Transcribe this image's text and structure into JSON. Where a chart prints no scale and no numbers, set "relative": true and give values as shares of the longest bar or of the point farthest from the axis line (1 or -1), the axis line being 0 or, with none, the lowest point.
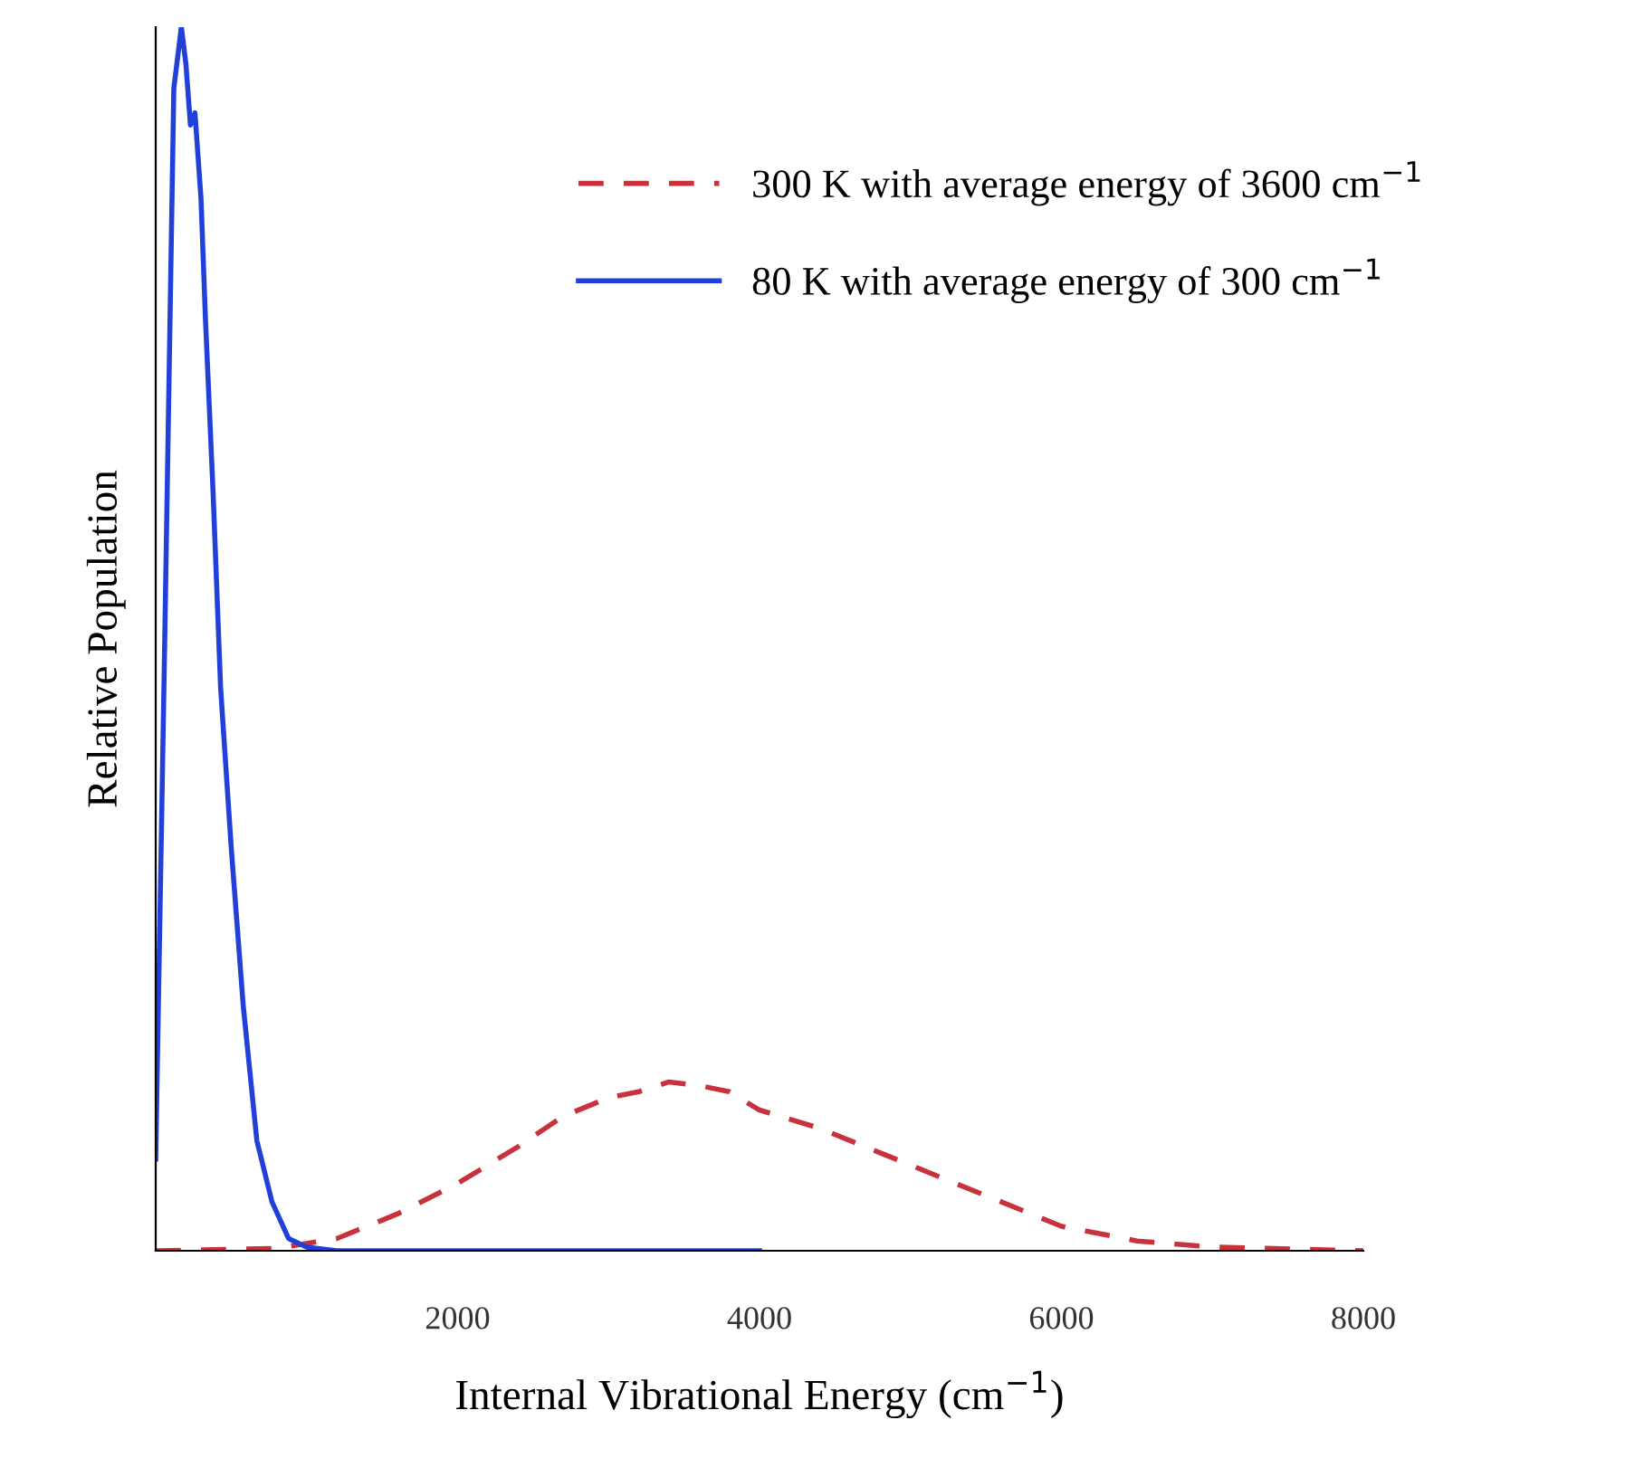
{
  "chart_data": {
    "type": "line",
    "relative": true,
    "xlabel": "Internal Vibrational Energy (cm$^{−1}$)",
    "ylabel": "Relative Population",
    "xlim": [
      0,
      8000
    ],
    "xticks": [
      2000,
      4000,
      6000,
      8000
    ],
    "legend": "top right",
    "grid": false,
    "series": [
      {
        "name": "300 K with average energy of 3600 cm$^{−1}$",
        "color": "#c8323c",
        "line_style": "dashed",
        "x": [
          0,
          800,
          1200,
          1600,
          2000,
          2400,
          2700,
          3000,
          3200,
          3400,
          3600,
          3800,
          4000,
          4400,
          4800,
          5200,
          5600,
          6000,
          6500,
          7000,
          8000
        ],
        "values": [
          0,
          0.002,
          0.01,
          0.03,
          0.055,
          0.085,
          0.11,
          0.125,
          0.13,
          0.138,
          0.135,
          0.13,
          0.115,
          0.1,
          0.08,
          0.06,
          0.04,
          0.02,
          0.008,
          0.003,
          0
        ]
      },
      {
        "name": "80 K with average energy of 300 cm$^{−1}$",
        "color": "#2040d8",
        "line_style": "solid",
        "x": [
          0,
          60,
          120,
          170,
          200,
          230,
          260,
          300,
          330,
          380,
          430,
          500,
          580,
          670,
          770,
          880,
          1000,
          1200,
          2000,
          4000
        ],
        "values": [
          0.075,
          0.5,
          0.95,
          1.0,
          0.97,
          0.92,
          0.93,
          0.86,
          0.76,
          0.62,
          0.46,
          0.33,
          0.2,
          0.09,
          0.04,
          0.01,
          0.003,
          0,
          0,
          0
        ]
      }
    ]
  }
}
